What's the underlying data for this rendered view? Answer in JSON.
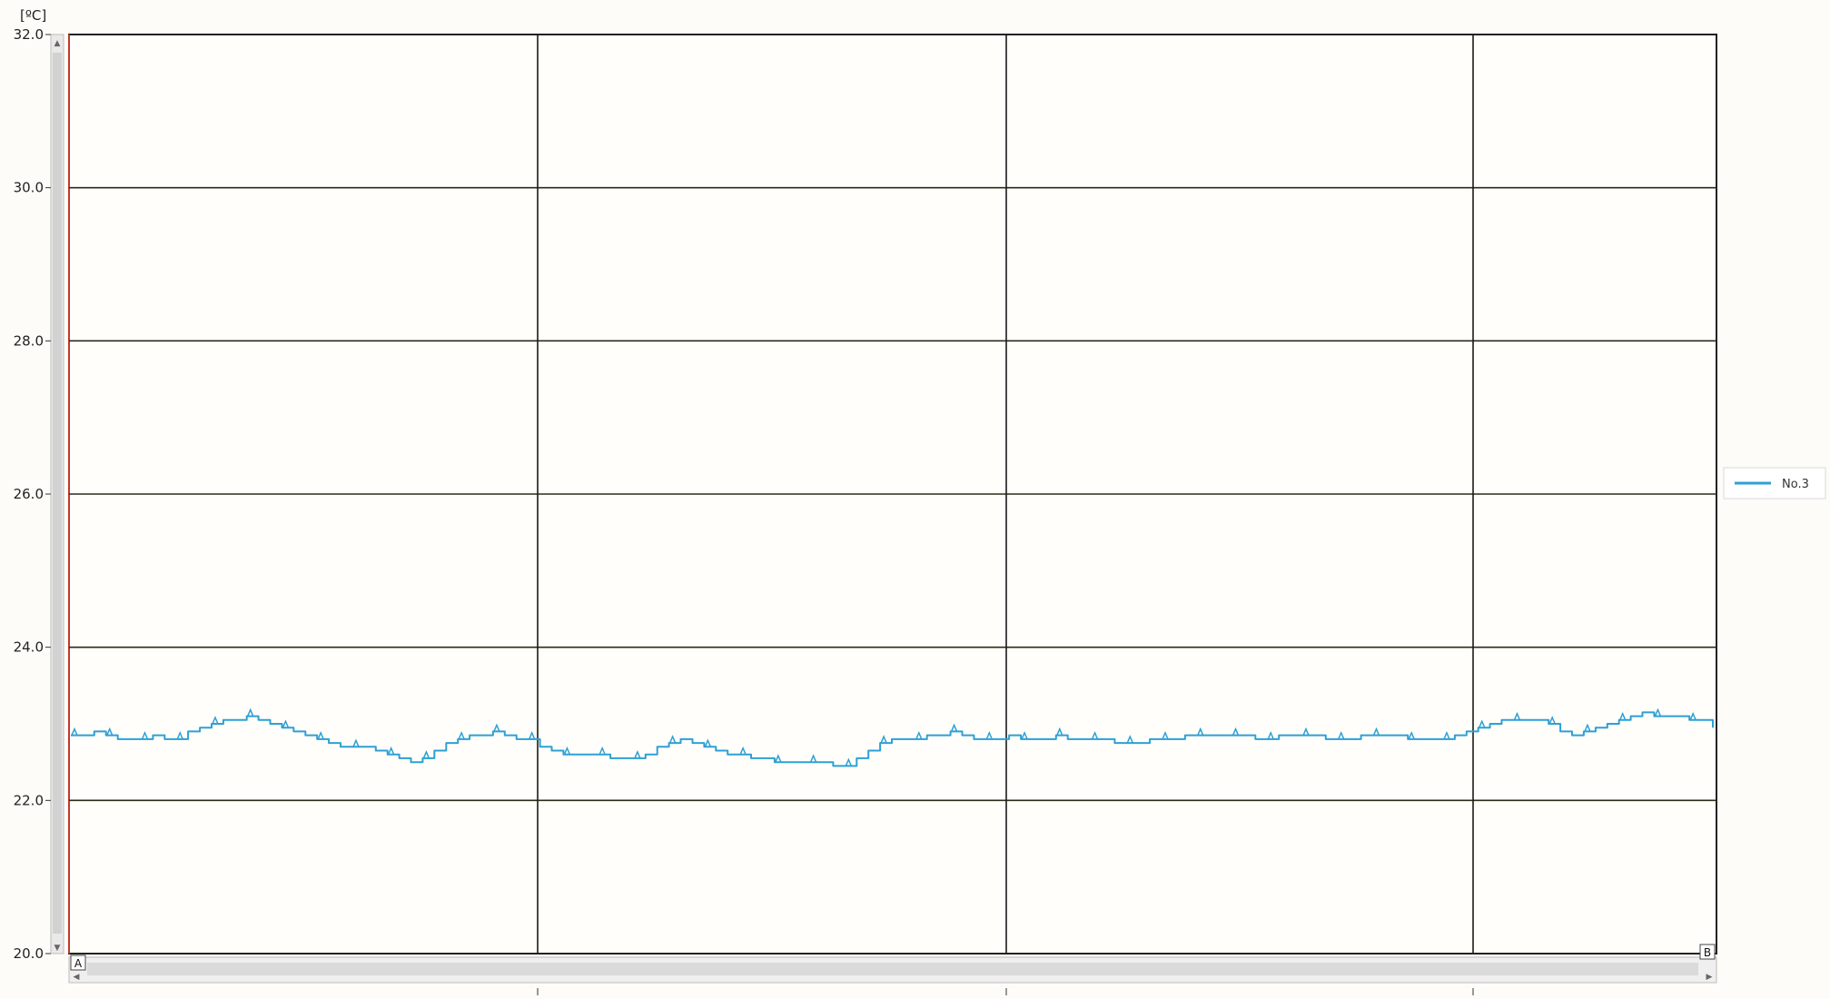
{
  "chart_data": {
    "type": "line",
    "ylabel": "[ºC]",
    "ylim": [
      20.0,
      32.0
    ],
    "yticks": [
      "32.0",
      "30.0",
      "28.0",
      "26.0",
      "24.0",
      "22.0",
      "20.0"
    ],
    "grid": true,
    "vertical_gridlines": 3,
    "legend": {
      "position": "right"
    },
    "scroll_markers": {
      "left": "A",
      "right": "B"
    },
    "series": [
      {
        "name": "No.3",
        "color": "#2ea0d6",
        "x": [
          0,
          1,
          2,
          3,
          4,
          5,
          6,
          7,
          8,
          9,
          10,
          11,
          12,
          13,
          14,
          15,
          16,
          17,
          18,
          19,
          20,
          21,
          22,
          23,
          24,
          25,
          26,
          27,
          28,
          29,
          30,
          31,
          32,
          33,
          34,
          35,
          36,
          37,
          38,
          39,
          40,
          41,
          42,
          43,
          44,
          45,
          46,
          47,
          48,
          49,
          50,
          51,
          52,
          53,
          54,
          55,
          56,
          57,
          58,
          59,
          60,
          61,
          62,
          63,
          64,
          65,
          66,
          67,
          68,
          69,
          70,
          71,
          72,
          73,
          74,
          75,
          76,
          77,
          78,
          79,
          80,
          81,
          82,
          83,
          84,
          85,
          86,
          87,
          88,
          89,
          90,
          91,
          92,
          93,
          94,
          95,
          96,
          97,
          98,
          99,
          100,
          101,
          102,
          103,
          104,
          105,
          106,
          107,
          108,
          109,
          110,
          111,
          112,
          113,
          114,
          115,
          116,
          117,
          118,
          119,
          120,
          121,
          122,
          123,
          124,
          125,
          126,
          127,
          128,
          129,
          130,
          131,
          132,
          133,
          134,
          135,
          136,
          137,
          138,
          139,
          140
        ],
        "values": [
          22.85,
          22.85,
          22.9,
          22.85,
          22.8,
          22.8,
          22.8,
          22.85,
          22.8,
          22.8,
          22.9,
          22.95,
          23.0,
          23.05,
          23.05,
          23.1,
          23.05,
          23.0,
          22.95,
          22.9,
          22.85,
          22.8,
          22.75,
          22.7,
          22.7,
          22.7,
          22.65,
          22.6,
          22.55,
          22.5,
          22.55,
          22.65,
          22.75,
          22.8,
          22.85,
          22.85,
          22.9,
          22.85,
          22.8,
          22.8,
          22.7,
          22.65,
          22.6,
          22.6,
          22.6,
          22.6,
          22.55,
          22.55,
          22.55,
          22.6,
          22.7,
          22.75,
          22.8,
          22.75,
          22.7,
          22.65,
          22.6,
          22.6,
          22.55,
          22.55,
          22.5,
          22.5,
          22.5,
          22.5,
          22.5,
          22.45,
          22.45,
          22.55,
          22.65,
          22.75,
          22.8,
          22.8,
          22.8,
          22.85,
          22.85,
          22.9,
          22.85,
          22.8,
          22.8,
          22.8,
          22.85,
          22.8,
          22.8,
          22.8,
          22.85,
          22.8,
          22.8,
          22.8,
          22.8,
          22.75,
          22.75,
          22.75,
          22.8,
          22.8,
          22.8,
          22.85,
          22.85,
          22.85,
          22.85,
          22.85,
          22.85,
          22.8,
          22.8,
          22.85,
          22.85,
          22.85,
          22.85,
          22.8,
          22.8,
          22.8,
          22.85,
          22.85,
          22.85,
          22.85,
          22.8,
          22.8,
          22.8,
          22.8,
          22.85,
          22.9,
          22.95,
          23.0,
          23.05,
          23.05,
          23.05,
          23.05,
          23.0,
          22.9,
          22.85,
          22.9,
          22.95,
          23.0,
          23.05,
          23.1,
          23.15,
          23.1,
          23.1,
          23.1,
          23.05,
          23.05,
          22.95
        ]
      }
    ]
  }
}
